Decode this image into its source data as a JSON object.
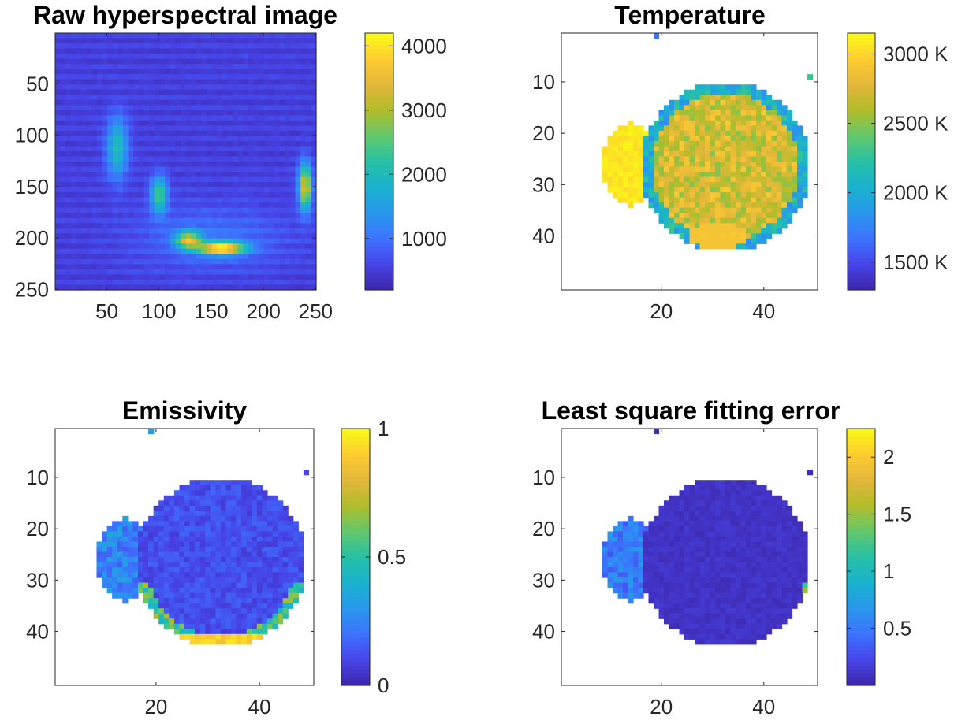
{
  "colormap": "parula",
  "colormap_stops": [
    "#3E26A8",
    "#4744E8",
    "#3D72FE",
    "#2997EC",
    "#1AB2CF",
    "#26C0A7",
    "#62C86D",
    "#B0BD2A",
    "#E3B73A",
    "#FECB31",
    "#F9FB15"
  ],
  "axis_color": "#262626",
  "background": "#FFFFFF",
  "chart_data": [
    {
      "type": "heatmap",
      "title": "Raw hyperspectral image",
      "xlim": [
        0.5,
        250.5
      ],
      "ylim": [
        0.5,
        250.5
      ],
      "y_direction": "reverse",
      "xticks": [
        {
          "value": 50,
          "label": "50"
        },
        {
          "value": 100,
          "label": "100"
        },
        {
          "value": 150,
          "label": "150"
        },
        {
          "value": 200,
          "label": "200"
        },
        {
          "value": 250,
          "label": "250"
        }
      ],
      "yticks": [
        {
          "value": 50,
          "label": "50"
        },
        {
          "value": 100,
          "label": "100"
        },
        {
          "value": 150,
          "label": "150"
        },
        {
          "value": 200,
          "label": "200"
        },
        {
          "value": 250,
          "label": "250"
        }
      ],
      "clim": [
        200,
        4200
      ],
      "colorbar_ticks": [
        {
          "value": 1000,
          "label": "1000"
        },
        {
          "value": 2000,
          "label": "2000"
        },
        {
          "value": 3000,
          "label": "3000"
        },
        {
          "value": 4000,
          "label": "4000"
        }
      ],
      "grid": false,
      "values": {
        "grid_size": [
          50,
          50
        ],
        "background": 450,
        "stripe_amplitude": 170,
        "hotspots": [
          {
            "x": 160,
            "y": 210,
            "rx": 22,
            "ry": 6,
            "peak": 3600
          },
          {
            "x": 128,
            "y": 202,
            "rx": 12,
            "ry": 8,
            "peak": 2600
          },
          {
            "x": 240,
            "y": 150,
            "rx": 6,
            "ry": 22,
            "peak": 3000
          },
          {
            "x": 100,
            "y": 158,
            "rx": 8,
            "ry": 18,
            "peak": 1900
          },
          {
            "x": 60,
            "y": 112,
            "rx": 10,
            "ry": 30,
            "peak": 1500
          },
          {
            "x": 150,
            "y": 200,
            "rx": 70,
            "ry": 30,
            "peak": 500
          }
        ]
      }
    },
    {
      "type": "heatmap",
      "title": "Temperature",
      "xlim": [
        0.5,
        50.5
      ],
      "ylim": [
        0.5,
        50.5
      ],
      "y_direction": "reverse",
      "xticks": [
        {
          "value": 20,
          "label": "20"
        },
        {
          "value": 40,
          "label": "40"
        }
      ],
      "yticks": [
        {
          "value": 10,
          "label": "10"
        },
        {
          "value": 20,
          "label": "20"
        },
        {
          "value": 30,
          "label": "30"
        },
        {
          "value": 40,
          "label": "40"
        }
      ],
      "clim": [
        1300,
        3150
      ],
      "colorbar_ticks": [
        {
          "value": 1500,
          "label": "1500 K"
        },
        {
          "value": 2000,
          "label": "2000 K"
        },
        {
          "value": 2500,
          "label": "2500 K"
        },
        {
          "value": 3000,
          "label": "3000 K"
        }
      ],
      "grid": false,
      "values": {
        "grid_size": [
          50,
          50
        ],
        "region": {
          "cx": 32.5,
          "cy": 26.5,
          "r": 16.5,
          "lobe": {
            "cx": 14,
            "cy": 26,
            "rx": 5.5,
            "ry": 8
          }
        },
        "core": 2720,
        "noise": 230,
        "edge_value": 1800,
        "lobe_value": 3130,
        "bottom_hot": {
          "x": 31,
          "y": 40,
          "value": 2900
        },
        "isolated": [
          {
            "x": 19,
            "y": 1,
            "value": 1700
          },
          {
            "x": 49,
            "y": 9,
            "value": 2300
          }
        ]
      }
    },
    {
      "type": "heatmap",
      "title": "Emissivity",
      "xlim": [
        0.5,
        50.5
      ],
      "ylim": [
        0.5,
        50.5
      ],
      "y_direction": "reverse",
      "xticks": [
        {
          "value": 20,
          "label": "20"
        },
        {
          "value": 40,
          "label": "40"
        }
      ],
      "yticks": [
        {
          "value": 10,
          "label": "10"
        },
        {
          "value": 20,
          "label": "20"
        },
        {
          "value": 30,
          "label": "30"
        },
        {
          "value": 40,
          "label": "40"
        }
      ],
      "clim": [
        0,
        1
      ],
      "colorbar_ticks": [
        {
          "value": 0,
          "label": "0"
        },
        {
          "value": 0.5,
          "label": "0.5"
        },
        {
          "value": 1,
          "label": "1"
        }
      ],
      "grid": false,
      "values": {
        "grid_size": [
          50,
          50
        ],
        "region": {
          "cx": 32.5,
          "cy": 26.5,
          "r": 16.5,
          "lobe": {
            "cx": 14,
            "cy": 26,
            "rx": 5.5,
            "ry": 8
          }
        },
        "core": 0.12,
        "noise": 0.05,
        "edge_value": 0.4,
        "bottom_value": 0.97,
        "isolated": [
          {
            "x": 19,
            "y": 1,
            "value": 0.3
          },
          {
            "x": 49,
            "y": 9,
            "value": 0.1
          }
        ]
      }
    },
    {
      "type": "heatmap",
      "title": "Least square fitting error",
      "xlim": [
        0.5,
        50.5
      ],
      "ylim": [
        0.5,
        50.5
      ],
      "y_direction": "reverse",
      "xticks": [
        {
          "value": 20,
          "label": "20"
        },
        {
          "value": 40,
          "label": "40"
        }
      ],
      "yticks": [
        {
          "value": 10,
          "label": "10"
        },
        {
          "value": 20,
          "label": "20"
        },
        {
          "value": 30,
          "label": "30"
        },
        {
          "value": 40,
          "label": "40"
        }
      ],
      "clim": [
        0,
        2.25
      ],
      "colorbar_ticks": [
        {
          "value": 0.5,
          "label": "0.5"
        },
        {
          "value": 1,
          "label": "1"
        },
        {
          "value": 1.5,
          "label": "1.5"
        },
        {
          "value": 2,
          "label": "2"
        }
      ],
      "grid": false,
      "values": {
        "grid_size": [
          50,
          50
        ],
        "region": {
          "cx": 32.5,
          "cy": 26.5,
          "r": 16.5,
          "lobe": {
            "cx": 14,
            "cy": 26,
            "rx": 5.5,
            "ry": 8
          }
        },
        "core": 0.1,
        "noise": 0.05,
        "lobe_value": 0.5,
        "right_edge": {
          "x": 49,
          "y": 33,
          "value": 1.8
        },
        "isolated": [
          {
            "x": 19,
            "y": 1,
            "value": 0.05
          },
          {
            "x": 49,
            "y": 9,
            "value": 0.05
          }
        ]
      }
    }
  ]
}
